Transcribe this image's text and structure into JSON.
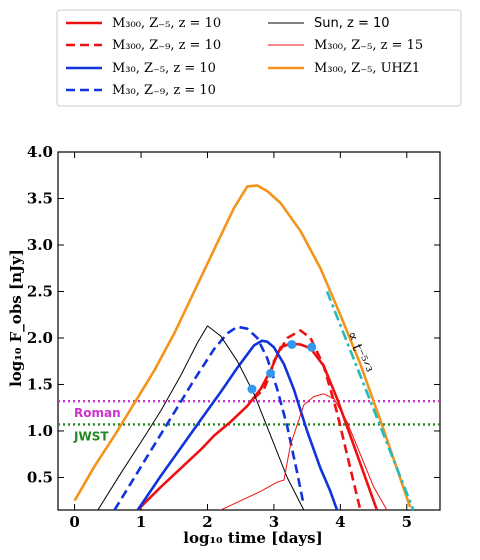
{
  "chart_data": {
    "type": "line",
    "xlabel": "log₁₀ time [days]",
    "ylabel": "log₁₀ F_obs [nJy]",
    "xlim": [
      -0.25,
      5.5
    ],
    "ylim": [
      0.15,
      4.0
    ],
    "xticks": [
      0,
      1,
      2,
      3,
      4,
      5
    ],
    "yticks": [
      0.5,
      1.0,
      1.5,
      2.0,
      2.5,
      3.0,
      3.5,
      4.0
    ],
    "grid": false,
    "legend_position": "top",
    "series": [
      {
        "name": "M₃₀₀, Z₋₅, z = 10",
        "color": "#ee1111",
        "style": "solid",
        "width": 2.6,
        "x": [
          0.95,
          1.3,
          1.6,
          1.9,
          2.1,
          2.35,
          2.6,
          2.8,
          2.95,
          3.1,
          3.25,
          3.4,
          3.55,
          3.75,
          3.95,
          4.15,
          4.35,
          4.55
        ],
        "y": [
          0.15,
          0.4,
          0.6,
          0.8,
          0.95,
          1.1,
          1.27,
          1.45,
          1.65,
          1.9,
          1.94,
          1.93,
          1.89,
          1.7,
          1.35,
          0.95,
          0.55,
          0.15
        ]
      },
      {
        "name": "M₃₀₀, Z₋₉, z = 10",
        "color": "#ee1111",
        "style": "dashed",
        "width": 2.6,
        "x": [
          2.7,
          2.85,
          2.95,
          3.0,
          3.2,
          3.4,
          3.55,
          3.75,
          3.95,
          4.15,
          4.3
        ],
        "y": [
          1.35,
          1.45,
          1.62,
          1.75,
          2.0,
          2.08,
          2.0,
          1.7,
          1.2,
          0.6,
          0.15
        ]
      },
      {
        "name": "M₃₀, Z₋₅, z = 10",
        "color": "#1133dd",
        "style": "solid",
        "width": 2.6,
        "x": [
          0.95,
          1.3,
          1.6,
          1.9,
          2.2,
          2.45,
          2.7,
          2.82,
          2.9,
          3.0,
          3.15,
          3.3,
          3.5,
          3.7,
          3.85,
          3.95
        ],
        "y": [
          0.15,
          0.52,
          0.82,
          1.12,
          1.42,
          1.68,
          1.92,
          1.97,
          1.96,
          1.9,
          1.72,
          1.45,
          1.0,
          0.6,
          0.35,
          0.15
        ]
      },
      {
        "name": "M₃₀, Z₋₉, z = 10",
        "color": "#1133dd",
        "style": "dashed",
        "width": 2.6,
        "x": [
          0.6,
          0.9,
          1.2,
          1.5,
          1.8,
          2.1,
          2.3,
          2.45,
          2.6,
          2.75,
          2.9,
          3.05,
          3.2,
          3.35,
          3.45
        ],
        "y": [
          0.15,
          0.5,
          0.85,
          1.2,
          1.55,
          1.88,
          2.05,
          2.12,
          2.1,
          2.0,
          1.78,
          1.45,
          1.05,
          0.55,
          0.2
        ]
      },
      {
        "name": "Sun, z = 10",
        "color": "#000000",
        "style": "solid",
        "width": 1.0,
        "x": [
          0.35,
          0.7,
          1.0,
          1.3,
          1.6,
          1.85,
          2.0,
          2.2,
          2.45,
          2.7,
          2.95,
          3.2,
          3.45
        ],
        "y": [
          0.15,
          0.55,
          0.88,
          1.22,
          1.6,
          1.95,
          2.13,
          2.02,
          1.75,
          1.4,
          0.95,
          0.5,
          0.15
        ]
      },
      {
        "name": "M₃₀₀, Z₋₅, z = 15",
        "color": "#ee1111",
        "style": "solid",
        "width": 1.0,
        "x": [
          2.2,
          2.5,
          2.8,
          3.05,
          3.15,
          3.25,
          3.45,
          3.6,
          3.75,
          3.9,
          4.1,
          4.3,
          4.5,
          4.7
        ],
        "y": [
          0.15,
          0.25,
          0.35,
          0.45,
          0.47,
          0.85,
          1.28,
          1.37,
          1.4,
          1.35,
          1.1,
          0.75,
          0.4,
          0.15
        ]
      },
      {
        "name": "M₃₀₀, Z₋₅, UHZ1",
        "color": "#f5931b",
        "style": "solid",
        "width": 2.6,
        "x": [
          0.0,
          0.3,
          0.6,
          0.9,
          1.2,
          1.5,
          1.8,
          2.1,
          2.4,
          2.6,
          2.75,
          2.9,
          3.1,
          3.4,
          3.7,
          4.0,
          4.3,
          4.6,
          4.85,
          5.05
        ],
        "y": [
          0.25,
          0.62,
          0.95,
          1.3,
          1.65,
          2.05,
          2.5,
          2.95,
          3.4,
          3.63,
          3.64,
          3.58,
          3.45,
          3.15,
          2.75,
          2.25,
          1.72,
          1.12,
          0.6,
          0.18
        ]
      }
    ],
    "markers": {
      "color": "#3399ee",
      "points": [
        [
          2.67,
          1.45
        ],
        [
          2.95,
          1.62
        ],
        [
          3.27,
          1.93
        ],
        [
          3.57,
          1.9
        ]
      ]
    },
    "hlines": [
      {
        "label": "Roman",
        "y": 1.32,
        "color": "#cc33cc"
      },
      {
        "label": "JWST",
        "y": 1.07,
        "color": "#228822"
      }
    ],
    "slope_line": {
      "label": "∝ t⁻⁵ᐟ³",
      "color": "#22bbbb",
      "x": [
        3.8,
        5.1
      ],
      "y": [
        2.5,
        0.15
      ]
    }
  }
}
